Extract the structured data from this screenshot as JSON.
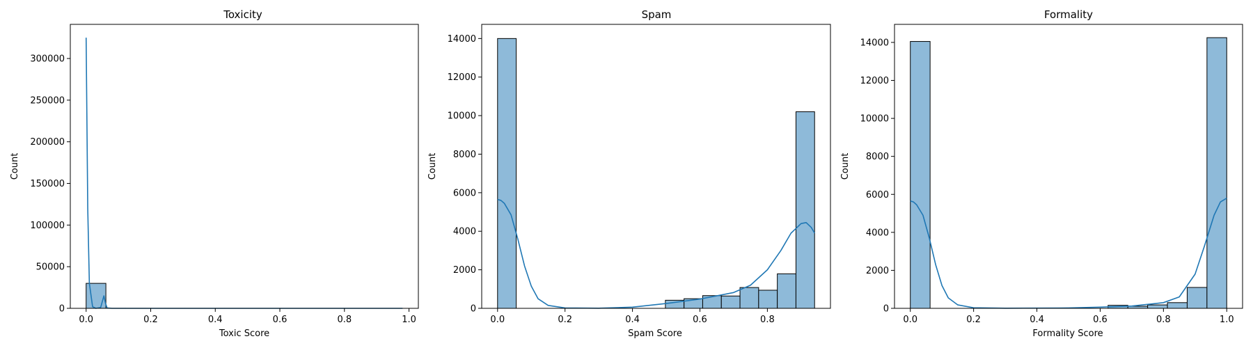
{
  "chart_data": [
    {
      "type": "histogram",
      "title": "Toxicity",
      "xlabel": "Toxic Score",
      "ylabel": "Count",
      "xlim": [
        -0.049,
        1.029
      ],
      "ylim": [
        0,
        341000
      ],
      "xticks": [
        0.0,
        0.2,
        0.4,
        0.6,
        0.8,
        1.0
      ],
      "xtick_labels": [
        "0.0",
        "0.2",
        "0.4",
        "0.6",
        "0.8",
        "1.0"
      ],
      "yticks": [
        0,
        50000,
        100000,
        150000,
        200000,
        250000,
        300000
      ],
      "ytick_labels": [
        "0",
        "50000",
        "100000",
        "150000",
        "200000",
        "250000",
        "300000"
      ],
      "grid": false,
      "bars": [
        {
          "x0": 0.0,
          "x1": 0.0612,
          "count": 30000
        },
        {
          "x0": 0.0612,
          "x1": 0.1224,
          "count": 30
        },
        {
          "x0": 0.1224,
          "x1": 0.1837,
          "count": 15
        },
        {
          "x0": 0.1837,
          "x1": 0.2449,
          "count": 10
        },
        {
          "x0": 0.2449,
          "x1": 0.3061,
          "count": 8
        },
        {
          "x0": 0.3061,
          "x1": 0.3673,
          "count": 6
        },
        {
          "x0": 0.3673,
          "x1": 0.4286,
          "count": 5
        },
        {
          "x0": 0.4286,
          "x1": 0.4898,
          "count": 5
        },
        {
          "x0": 0.4898,
          "x1": 0.551,
          "count": 4
        },
        {
          "x0": 0.551,
          "x1": 0.6122,
          "count": 4
        },
        {
          "x0": 0.6122,
          "x1": 0.6735,
          "count": 4
        },
        {
          "x0": 0.6735,
          "x1": 0.7347,
          "count": 3
        },
        {
          "x0": 0.7347,
          "x1": 0.7959,
          "count": 3
        },
        {
          "x0": 0.7959,
          "x1": 0.8571,
          "count": 3
        },
        {
          "x0": 0.8571,
          "x1": 0.9184,
          "count": 3
        },
        {
          "x0": 0.9184,
          "x1": 0.9796,
          "count": 3
        }
      ],
      "kde": [
        [
          0.0,
          325000
        ],
        [
          0.005,
          120000
        ],
        [
          0.01,
          30000
        ],
        [
          0.02,
          2000
        ],
        [
          0.03,
          0
        ],
        [
          0.045,
          1000
        ],
        [
          0.05,
          8000
        ],
        [
          0.055,
          15000
        ],
        [
          0.06,
          6000
        ],
        [
          0.065,
          500
        ],
        [
          0.08,
          0
        ],
        [
          0.3,
          0
        ],
        [
          0.6,
          0
        ],
        [
          0.98,
          0
        ]
      ]
    },
    {
      "type": "histogram",
      "title": "Spam",
      "xlabel": "Spam Score",
      "ylabel": "Count",
      "xlim": [
        -0.047,
        0.987
      ],
      "ylim": [
        0,
        14735
      ],
      "xticks": [
        0.0,
        0.2,
        0.4,
        0.6,
        0.8
      ],
      "xtick_labels": [
        "0.0",
        "0.2",
        "0.4",
        "0.6",
        "0.8"
      ],
      "yticks": [
        0,
        2000,
        4000,
        6000,
        8000,
        10000,
        12000,
        14000
      ],
      "ytick_labels": [
        "0",
        "2000",
        "4000",
        "6000",
        "8000",
        "10000",
        "12000",
        "14000"
      ],
      "grid": false,
      "bars": [
        {
          "x0": 0.0,
          "x1": 0.0553,
          "count": 14000
        },
        {
          "x0": 0.4976,
          "x1": 0.5529,
          "count": 420
        },
        {
          "x0": 0.5529,
          "x1": 0.6082,
          "count": 500
        },
        {
          "x0": 0.6082,
          "x1": 0.6635,
          "count": 660
        },
        {
          "x0": 0.6635,
          "x1": 0.7188,
          "count": 640
        },
        {
          "x0": 0.7188,
          "x1": 0.7741,
          "count": 1080
        },
        {
          "x0": 0.7741,
          "x1": 0.8294,
          "count": 940
        },
        {
          "x0": 0.8294,
          "x1": 0.8847,
          "count": 1790
        },
        {
          "x0": 0.8847,
          "x1": 0.94,
          "count": 10200
        }
      ],
      "kde": [
        [
          0.0,
          5650
        ],
        [
          0.01,
          5600
        ],
        [
          0.02,
          5450
        ],
        [
          0.04,
          4850
        ],
        [
          0.06,
          3600
        ],
        [
          0.08,
          2200
        ],
        [
          0.1,
          1150
        ],
        [
          0.12,
          500
        ],
        [
          0.15,
          150
        ],
        [
          0.2,
          20
        ],
        [
          0.3,
          5
        ],
        [
          0.4,
          60
        ],
        [
          0.5,
          250
        ],
        [
          0.6,
          480
        ],
        [
          0.7,
          820
        ],
        [
          0.75,
          1200
        ],
        [
          0.8,
          2000
        ],
        [
          0.84,
          3000
        ],
        [
          0.87,
          3900
        ],
        [
          0.9,
          4400
        ],
        [
          0.915,
          4450
        ],
        [
          0.93,
          4200
        ],
        [
          0.94,
          3900
        ]
      ]
    },
    {
      "type": "histogram",
      "title": "Formality",
      "xlabel": "Formality Score",
      "ylabel": "Count",
      "xlim": [
        -0.05,
        1.05
      ],
      "ylim": [
        0,
        14950
      ],
      "xticks": [
        0.0,
        0.2,
        0.4,
        0.6,
        0.8,
        1.0
      ],
      "xtick_labels": [
        "0.0",
        "0.2",
        "0.4",
        "0.6",
        "0.8",
        "1.0"
      ],
      "yticks": [
        0,
        2000,
        4000,
        6000,
        8000,
        10000,
        12000,
        14000
      ],
      "ytick_labels": [
        "0",
        "2000",
        "4000",
        "6000",
        "8000",
        "10000",
        "12000",
        "14000"
      ],
      "grid": false,
      "bars": [
        {
          "x0": 0.0,
          "x1": 0.0625,
          "count": 14050
        },
        {
          "x0": 0.625,
          "x1": 0.6875,
          "count": 160
        },
        {
          "x0": 0.6875,
          "x1": 0.75,
          "count": 110
        },
        {
          "x0": 0.75,
          "x1": 0.8125,
          "count": 180
        },
        {
          "x0": 0.8125,
          "x1": 0.875,
          "count": 300
        },
        {
          "x0": 0.875,
          "x1": 0.9375,
          "count": 1100
        },
        {
          "x0": 0.9375,
          "x1": 1.0,
          "count": 14250
        }
      ],
      "kde": [
        [
          0.0,
          5650
        ],
        [
          0.01,
          5600
        ],
        [
          0.02,
          5450
        ],
        [
          0.04,
          4900
        ],
        [
          0.06,
          3700
        ],
        [
          0.08,
          2300
        ],
        [
          0.1,
          1200
        ],
        [
          0.12,
          550
        ],
        [
          0.15,
          180
        ],
        [
          0.2,
          30
        ],
        [
          0.3,
          5
        ],
        [
          0.5,
          20
        ],
        [
          0.6,
          60
        ],
        [
          0.7,
          120
        ],
        [
          0.8,
          300
        ],
        [
          0.85,
          600
        ],
        [
          0.9,
          1800
        ],
        [
          0.93,
          3300
        ],
        [
          0.96,
          4900
        ],
        [
          0.98,
          5600
        ],
        [
          1.0,
          5800
        ]
      ]
    }
  ],
  "colors": {
    "bar_fill": "#8ebad9",
    "bar_edge": "#000000",
    "kde_line": "#1f77b4",
    "axes": "#000000"
  }
}
